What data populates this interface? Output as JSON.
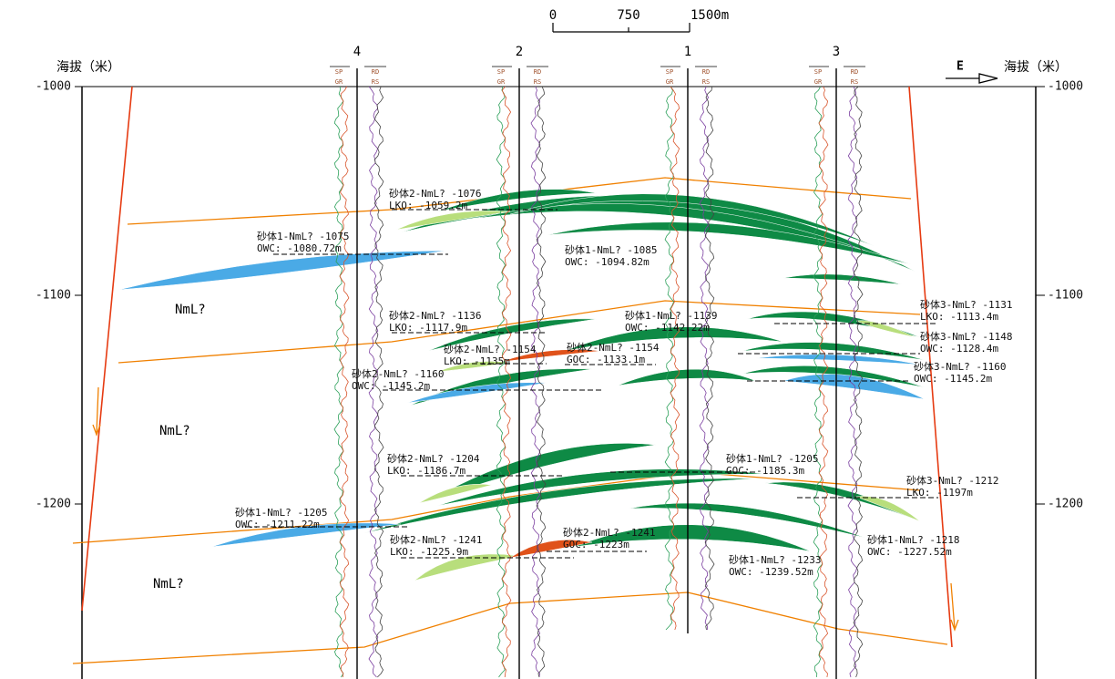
{
  "scale_bar": {
    "labels": [
      "0",
      "750",
      "1500m"
    ]
  },
  "axis": {
    "left_title": "海拔（米）",
    "right_title": "海拔（米）",
    "direction": "E",
    "left_ticks": [
      "-1000",
      "-1100",
      "-1200"
    ],
    "right_ticks": [
      "-1000",
      "-1100",
      "-1200"
    ]
  },
  "wells": [
    {
      "name": "4"
    },
    {
      "name": "2"
    },
    {
      "name": "1"
    },
    {
      "name": "3"
    }
  ],
  "log_labels": {
    "left_top": "SP",
    "left_bottom": "GR",
    "right_top": "RD",
    "right_bottom": "RS"
  },
  "formation_labels": [
    "NmL?",
    "NmL?",
    "NmL?"
  ],
  "annotations": [
    {
      "title": "砂体2-NmL? -1076",
      "contact": "LKO: -1059.2m"
    },
    {
      "title": "砂体1-NmL? -1075",
      "contact": "OWC: -1080.72m"
    },
    {
      "title": "砂体1-NmL? -1085",
      "contact": "OWC: -1094.82m"
    },
    {
      "title": "砂体2-NmL? -1136",
      "contact": "LKO: -1117.9m"
    },
    {
      "title": "砂体1-NmL? -1139",
      "contact": "OWC: -1142.22m"
    },
    {
      "title": "砂体2-NmL? -1154",
      "contact": "LKO: -1135m"
    },
    {
      "title": "砂体2-NmL? -1154",
      "contact": "GOC: -1133.1m"
    },
    {
      "title": "砂体2-NmL? -1160",
      "contact": "OWC: -1145.2m"
    },
    {
      "title": "砂体3-NmL? -1131",
      "contact": "LKO: -1113.4m"
    },
    {
      "title": "砂体3-NmL? -1148",
      "contact": "OWC: -1128.4m"
    },
    {
      "title": "砂体3-NmL? -1160",
      "contact": "OWC: -1145.2m"
    },
    {
      "title": "砂体2-NmL? -1204",
      "contact": "LKO: -1186.7m"
    },
    {
      "title": "砂体1-NmL? -1205",
      "contact": "GOC: -1185.3m"
    },
    {
      "title": "砂体3-NmL? -1212",
      "contact": "LKO: -1197m"
    },
    {
      "title": "砂体1-NmL? -1205",
      "contact": "OWC: -1211.22m"
    },
    {
      "title": "砂体2-NmL? -1241",
      "contact": "LKO: -1225.9m"
    },
    {
      "title": "砂体2-NmL? -1241",
      "contact": "GOC: -1223m"
    },
    {
      "title": "砂体1-NmL? -1218",
      "contact": "OWC: -1227.52m"
    },
    {
      "title": "砂体1-NmL? -1233",
      "contact": "OWC: -1239.52m"
    }
  ]
}
